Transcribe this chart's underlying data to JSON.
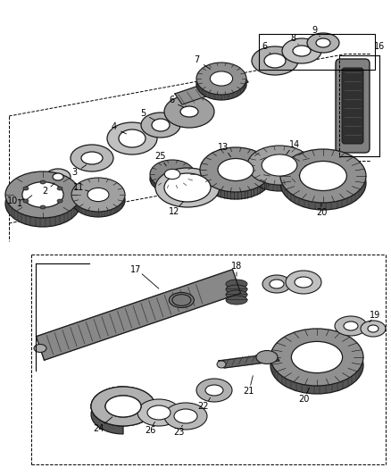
{
  "bg_color": "#ffffff",
  "lc": "#1a1a1a",
  "gray1": "#b0b0b0",
  "gray2": "#888888",
  "gray3": "#555555",
  "gray4": "#333333",
  "gray5": "#cccccc",
  "gray6": "#999999",
  "gear_fill": "#909090",
  "chain_fill": "#707070",
  "chain_dark": "#303030"
}
